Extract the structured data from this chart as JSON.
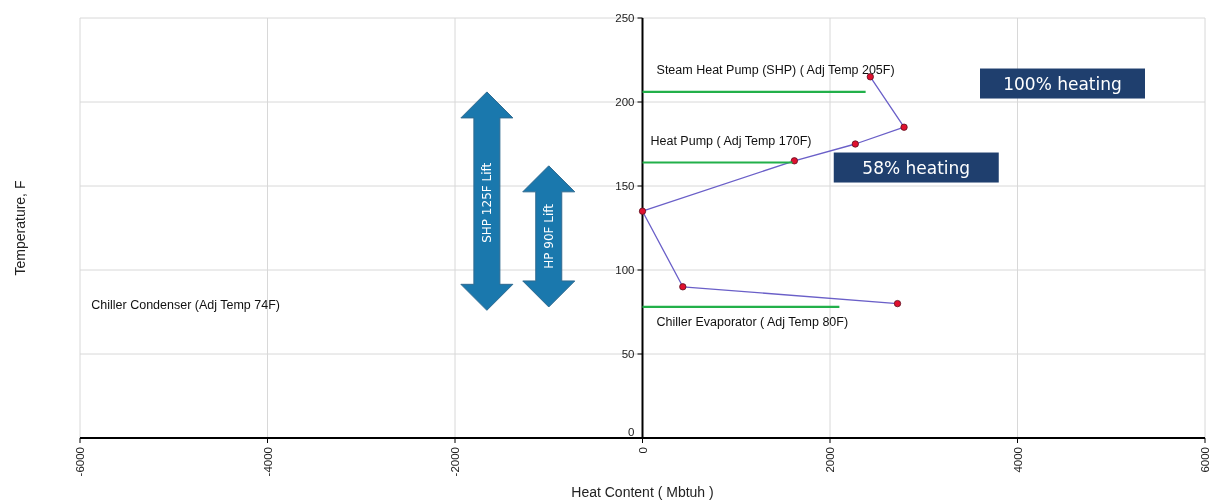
{
  "chart_data": {
    "type": "line",
    "xlabel": "Heat Content ( Mbtuh )",
    "ylabel": "Temperature, F",
    "xlim": [
      -6000,
      6000
    ],
    "xticks": [
      -6000,
      -4000,
      -2000,
      0,
      2000,
      4000,
      6000
    ],
    "ylim": [
      0,
      250
    ],
    "yticks": [
      0,
      50,
      100,
      150,
      200,
      250
    ],
    "grid": true,
    "marker": "circle",
    "line_style": "solid",
    "series": [
      {
        "color": "#6a5fc8",
        "x": [
          2430,
          2790,
          2270,
          1620,
          0,
          430,
          2720
        ],
        "values": [
          215,
          185,
          175,
          165,
          135,
          90,
          80
        ]
      },
      {
        "type": "line",
        "color": "#22b04a",
        "marker": "none",
        "x": [
          0,
          2380
        ],
        "values": [
          206,
          206
        ]
      },
      {
        "type": "line",
        "color": "#22b04a",
        "marker": "none",
        "x": [
          0,
          1600
        ],
        "values": [
          164,
          164
        ]
      },
      {
        "type": "line",
        "color": "#22b04a",
        "marker": "none",
        "x": [
          0,
          2100
        ],
        "values": [
          78,
          78
        ]
      }
    ],
    "annotations": [
      "Steam Heat Pump (SHP) ( Adj Temp 205F)",
      "Heat Pump ( Adj Temp 170F)",
      "Chiller Evaporator ( Adj Temp 80F)",
      "Chiller Condenser (Adj Temp 74F)",
      "100% heating",
      "58% heating",
      "SHP 125F Lift",
      "HP 90F Lift"
    ]
  }
}
